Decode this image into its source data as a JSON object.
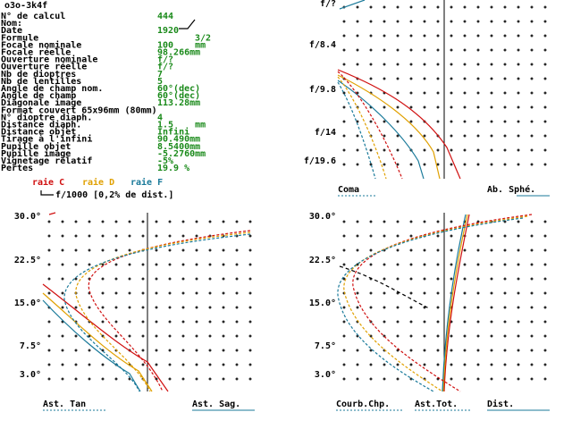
{
  "header": {
    "title": "o3o-3k4f"
  },
  "info": {
    "rows": [
      [
        "N° de calcul",
        "444"
      ],
      [
        "Nom:",
        ""
      ],
      [
        "Date",
        "1920"
      ],
      [
        "Formule",
        "3/2"
      ],
      [
        "Focale nominale",
        "100    mm"
      ],
      [
        "Focale réelle",
        "98.266mm"
      ],
      [
        "Ouverture nominale",
        "f/?"
      ],
      [
        "Ouverture réelle",
        "f/?"
      ],
      [
        "Nb de dioptres",
        "7"
      ],
      [
        "Nb de lentilles",
        "5"
      ],
      [
        "Angle de champ nom.",
        "60°(dec)"
      ],
      [
        "Angle de champ",
        "60°(dec)"
      ],
      [
        "Diagonale image",
        "113.28mm"
      ],
      [
        "Format couvert 65x96mm (80mm)",
        ""
      ],
      [
        "N° dioptre diaph.",
        "4"
      ],
      [
        "Distance diaph.",
        "1.5    mm"
      ],
      [
        "Distance objet",
        "Infini"
      ],
      [
        "Tirage à l'infini",
        "90.490mm"
      ],
      [
        "Pupille objet",
        "8.5400mm"
      ],
      [
        "Pupille image",
        "-5.2760mm"
      ],
      [
        "Vignetage relatif",
        "-5%"
      ],
      [
        "Pertes",
        "19.9 %"
      ]
    ]
  },
  "legend": {
    "items": [
      "raie C",
      "raie D",
      "raie F"
    ],
    "note": "f/1000 [0,2% de dist.]"
  },
  "panels": {
    "aperture": {
      "y_labels": [
        "f/?",
        "f/8.4",
        "f/9.8",
        "f/14",
        "f/19.6"
      ],
      "labels": [
        "Coma",
        "Ab. Sphé."
      ]
    },
    "astigmatism": {
      "y_labels": [
        "30.0°",
        "22.5°",
        "15.0°",
        "7.5°",
        "3.0°"
      ],
      "labels": [
        "Ast. Tan",
        "Ast. Sag."
      ]
    },
    "field": {
      "y_labels": [
        "30.0°",
        "22.5°",
        "15.0°",
        "7.5°",
        "3.0°"
      ],
      "labels": [
        "Courb.Chp.",
        "Ast.Tot.",
        "Dist."
      ]
    }
  }
}
